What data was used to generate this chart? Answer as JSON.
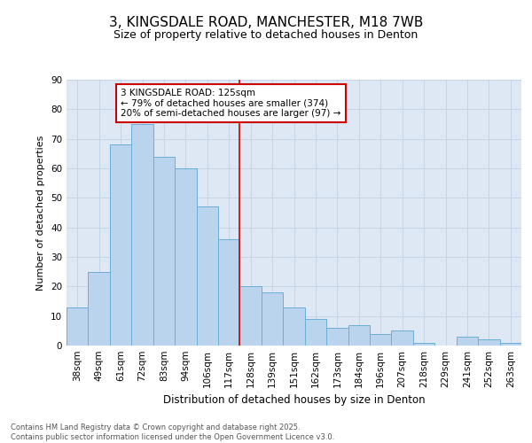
{
  "title": "3, KINGSDALE ROAD, MANCHESTER, M18 7WB",
  "subtitle": "Size of property relative to detached houses in Denton",
  "xlabel": "Distribution of detached houses by size in Denton",
  "ylabel": "Number of detached properties",
  "categories": [
    "38sqm",
    "49sqm",
    "61sqm",
    "72sqm",
    "83sqm",
    "94sqm",
    "106sqm",
    "117sqm",
    "128sqm",
    "139sqm",
    "151sqm",
    "162sqm",
    "173sqm",
    "184sqm",
    "196sqm",
    "207sqm",
    "218sqm",
    "229sqm",
    "241sqm",
    "252sqm",
    "263sqm"
  ],
  "values": [
    13,
    25,
    68,
    75,
    64,
    60,
    47,
    36,
    20,
    18,
    13,
    9,
    6,
    7,
    4,
    5,
    1,
    0,
    3,
    2,
    1
  ],
  "bar_color": "#bad4ed",
  "bar_edge_color": "#6aaed6",
  "vline_index": 8,
  "vline_color": "#cc0000",
  "annotation_text": "3 KINGSDALE ROAD: 125sqm\n← 79% of detached houses are smaller (374)\n20% of semi-detached houses are larger (97) →",
  "annotation_box_facecolor": "#ffffff",
  "annotation_box_edgecolor": "#cc0000",
  "grid_color": "#c5d5e5",
  "background_color": "#dde8f4",
  "footer_text": "Contains HM Land Registry data © Crown copyright and database right 2025.\nContains public sector information licensed under the Open Government Licence v3.0.",
  "ylim": [
    0,
    90
  ],
  "yticks": [
    0,
    10,
    20,
    30,
    40,
    50,
    60,
    70,
    80,
    90
  ],
  "title_fontsize": 11,
  "subtitle_fontsize": 9,
  "xlabel_fontsize": 8.5,
  "ylabel_fontsize": 8,
  "tick_fontsize": 7.5,
  "footer_fontsize": 6,
  "ann_fontsize": 7.5
}
